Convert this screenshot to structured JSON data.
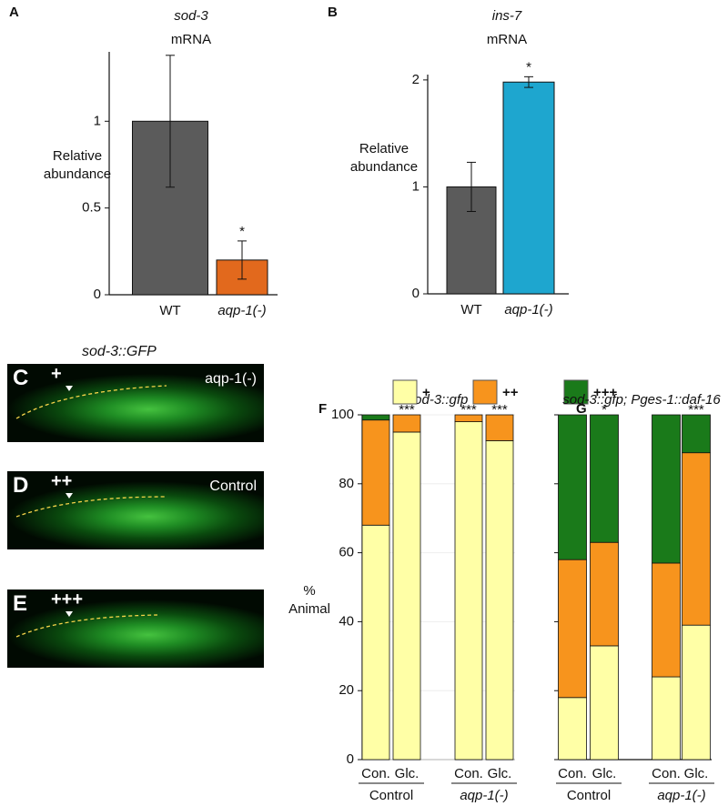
{
  "chart_data": [
    {
      "type": "bar",
      "panel": "A",
      "title": "sod-3",
      "subtitle": "mRNA",
      "ylabel": "Relative abundance",
      "categories": [
        "WT",
        "aqp-1(-)"
      ],
      "values": [
        1,
        0.2
      ],
      "errors": [
        0.38,
        0.11
      ],
      "colors": [
        "#5b5b5b",
        "#e2691d"
      ],
      "significance": [
        null,
        "*"
      ],
      "ylim": [
        0,
        1.4
      ],
      "yticks": [
        0,
        0.5,
        1
      ]
    },
    {
      "type": "bar",
      "panel": "B",
      "title": "ins-7",
      "subtitle": "mRNA",
      "ylabel": "Relative abundance",
      "categories": [
        "WT",
        "aqp-1(-)"
      ],
      "values": [
        1,
        1.98
      ],
      "errors": [
        0.23,
        0.05
      ],
      "colors": [
        "#5b5b5b",
        "#1ea6cf"
      ],
      "significance": [
        null,
        "*"
      ],
      "ylim": [
        0,
        2.05
      ],
      "yticks": [
        0,
        1,
        2
      ]
    },
    {
      "type": "stacked_bar",
      "panel": "F",
      "title": "sod-3::gfp",
      "ylabel": "% Animal",
      "categories": [
        "Con.",
        "Glc.",
        "Con.",
        "Glc."
      ],
      "groups": [
        "Control",
        "aqp-1(-)"
      ],
      "series": [
        {
          "name": "+",
          "color": "#ffffa6",
          "values": [
            68,
            95,
            98,
            92.5
          ]
        },
        {
          "name": "++",
          "color": "#f7941d",
          "values": [
            30.5,
            5,
            2,
            7.5
          ]
        },
        {
          "name": "+++",
          "color": "#1a7a1a",
          "values": [
            1.5,
            0,
            0,
            0
          ]
        }
      ],
      "significance": [
        null,
        "***",
        "***",
        "***"
      ],
      "ylim": [
        0,
        100
      ],
      "yticks": [
        0,
        20,
        40,
        60,
        80,
        100
      ],
      "tick_labels": true,
      "legend": "top"
    },
    {
      "type": "stacked_bar",
      "panel": "G",
      "title": "sod-3::gfp; Pges-1::daf-16",
      "categories": [
        "Con.",
        "Glc.",
        "Con.",
        "Glc."
      ],
      "groups": [
        "Control",
        "aqp-1(-)"
      ],
      "series": [
        {
          "name": "+",
          "color": "#ffffa6",
          "values": [
            18,
            33,
            24,
            39
          ]
        },
        {
          "name": "++",
          "color": "#f7941d",
          "values": [
            40,
            30,
            33,
            50
          ]
        },
        {
          "name": "+++",
          "color": "#1a7a1a",
          "values": [
            42,
            37,
            43,
            11
          ]
        }
      ],
      "significance": [
        null,
        "*",
        null,
        "***"
      ],
      "ylim": [
        0,
        100
      ],
      "yticks": [
        0,
        20,
        40,
        60,
        80,
        100
      ],
      "tick_labels": false
    }
  ],
  "micrographs": {
    "title": "sod-3::GFP",
    "panels": [
      {
        "panel": "C",
        "marker": "+",
        "label": "aqp-1(-)"
      },
      {
        "panel": "D",
        "marker": "++",
        "label": "Control"
      },
      {
        "panel": "E",
        "marker": "+++"
      }
    ]
  }
}
